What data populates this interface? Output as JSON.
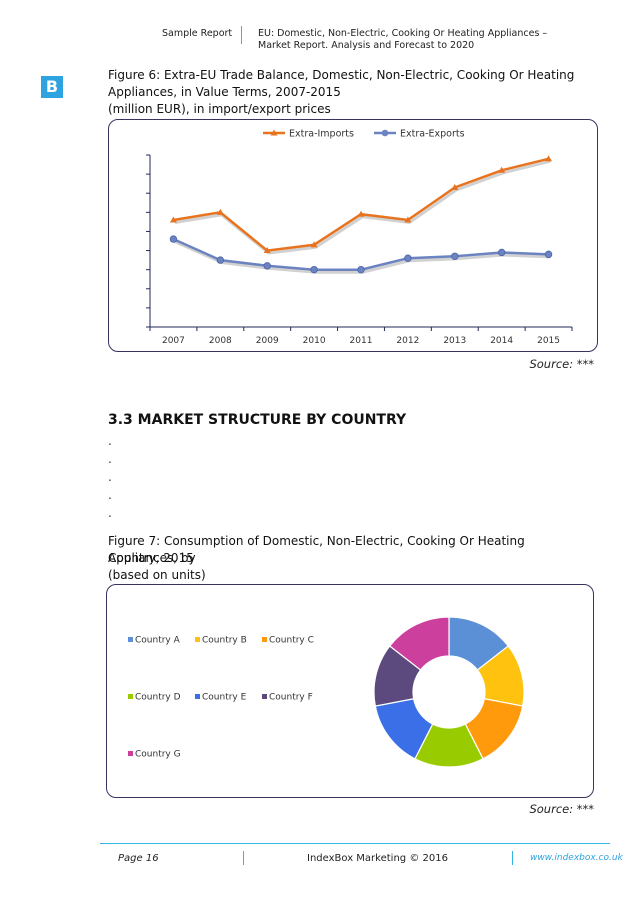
{
  "header": {
    "left": "Sample Report",
    "right": "EU: Domestic, Non-Electric, Cooking Or Heating Appliances – Market Report. Analysis and Forecast to 2020"
  },
  "logo": {
    "letter": "B",
    "color": "#2ea3e0"
  },
  "figure6": {
    "caption_line1": "Figure 6: Extra-EU Trade Balance, Domestic, Non-Electric, Cooking Or Heating",
    "caption_line2": "Appliances, in Value Terms, 2007-2015",
    "caption_line3": "(million EUR), in import/export prices",
    "source": "Source: ***"
  },
  "section": {
    "title": "3.3 MARKET STRUCTURE BY COUNTRY",
    "dots": [
      ".",
      ".",
      ".",
      ".",
      "."
    ]
  },
  "figure7": {
    "caption_line1": "Figure 7: Consumption of Domestic, Non-Electric, Cooking Or Heating Appliances, by",
    "caption_line2": "Country, 2015",
    "caption_line3": "(based on units)",
    "source": "Source: ***"
  },
  "footer": {
    "page": "Page 16",
    "center": "IndexBox Marketing © 2016",
    "url": "www.indexbox.co.uk"
  },
  "chart_data": [
    {
      "type": "line",
      "x": [
        "2007",
        "2008",
        "2009",
        "2010",
        "2011",
        "2012",
        "2013",
        "2014",
        "2015"
      ],
      "legend_position": "top",
      "y_ticks_labeled": false,
      "ylim": [
        0,
        9
      ],
      "series": [
        {
          "name": "Extra-Imports",
          "color": "#e8731f",
          "marker": "triangle",
          "values": [
            5.6,
            6.0,
            4.0,
            4.3,
            5.9,
            5.6,
            7.3,
            8.2,
            8.8
          ]
        },
        {
          "name": "Extra-Exports",
          "color": "#6b83c0",
          "marker": "circle",
          "values": [
            4.6,
            3.5,
            3.2,
            3.0,
            3.0,
            3.6,
            3.7,
            3.9,
            3.8
          ]
        }
      ]
    },
    {
      "type": "pie",
      "donut": true,
      "legend_position": "left",
      "categories": [
        "Country A",
        "Country B",
        "Country C",
        "Country D",
        "Country E",
        "Country F",
        "Country G"
      ],
      "values": [
        14.5,
        13.5,
        14.5,
        15,
        14.5,
        13.5,
        14.5
      ],
      "colors": [
        "#5b8fd6",
        "#ffc20e",
        "#ff9a0d",
        "#99cc00",
        "#3a6fe8",
        "#5c4a7e",
        "#cc3f9d"
      ]
    }
  ]
}
